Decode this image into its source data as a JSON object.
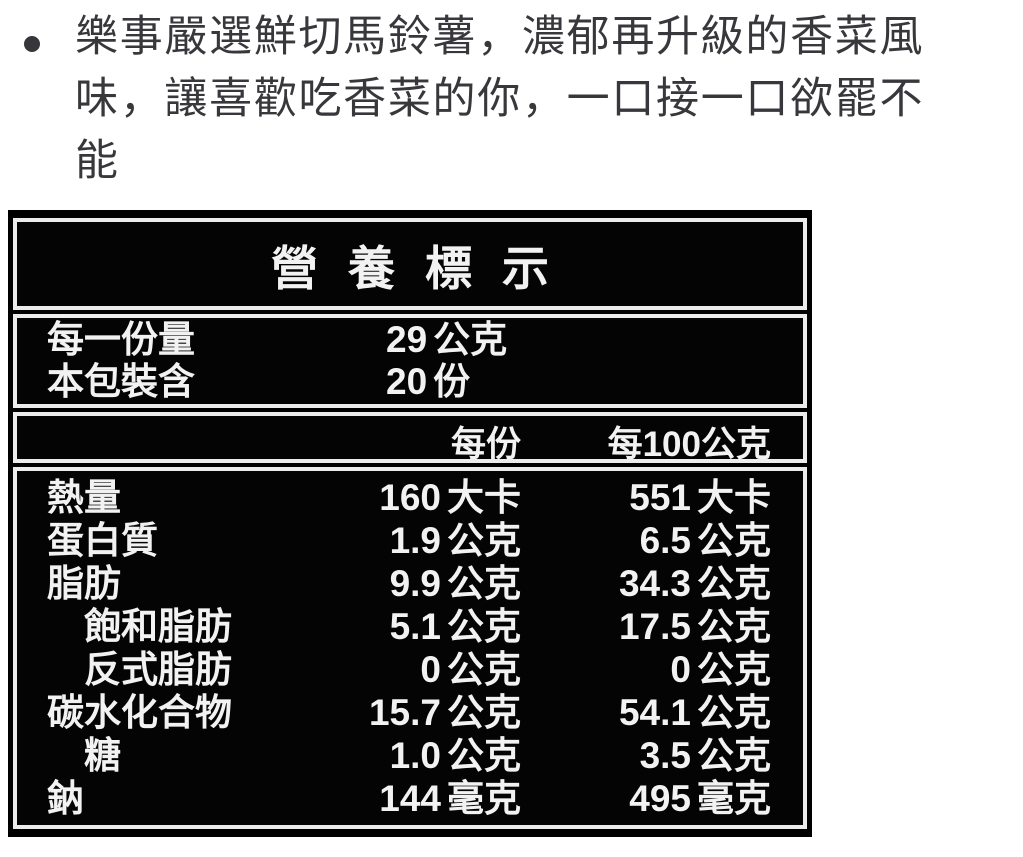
{
  "description": {
    "bullet_icon": "bullet-dot",
    "text": "樂事嚴選鮮切馬鈴薯，濃郁再升級的香菜風味，讓喜歡吃香菜的你，一口接一口欲罷不能"
  },
  "nutrition": {
    "title": "營養標示",
    "serving_rows": [
      {
        "label": "每一份量",
        "value": "29",
        "unit": "公克"
      },
      {
        "label": "本包裝含",
        "value": "20",
        "unit": "份"
      }
    ],
    "columns": [
      "每份",
      "每100公克"
    ],
    "rows": [
      {
        "name": "熱量",
        "indent": false,
        "per_serving": {
          "value": "160",
          "unit": "大卡"
        },
        "per_100g": {
          "value": "551",
          "unit": "大卡"
        }
      },
      {
        "name": "蛋白質",
        "indent": false,
        "per_serving": {
          "value": "1.9",
          "unit": "公克"
        },
        "per_100g": {
          "value": "6.5",
          "unit": "公克"
        }
      },
      {
        "name": "脂肪",
        "indent": false,
        "per_serving": {
          "value": "9.9",
          "unit": "公克"
        },
        "per_100g": {
          "value": "34.3",
          "unit": "公克"
        }
      },
      {
        "name": "飽和脂肪",
        "indent": true,
        "per_serving": {
          "value": "5.1",
          "unit": "公克"
        },
        "per_100g": {
          "value": "17.5",
          "unit": "公克"
        }
      },
      {
        "name": "反式脂肪",
        "indent": true,
        "per_serving": {
          "value": "0",
          "unit": "公克"
        },
        "per_100g": {
          "value": "0",
          "unit": "公克"
        }
      },
      {
        "name": "碳水化合物",
        "indent": false,
        "per_serving": {
          "value": "15.7",
          "unit": "公克"
        },
        "per_100g": {
          "value": "54.1",
          "unit": "公克"
        }
      },
      {
        "name": "糖",
        "indent": true,
        "per_serving": {
          "value": "1.0",
          "unit": "公克"
        },
        "per_100g": {
          "value": "3.5",
          "unit": "公克"
        }
      },
      {
        "name": "鈉",
        "indent": false,
        "per_serving": {
          "value": "144",
          "unit": "毫克"
        },
        "per_100g": {
          "value": "495",
          "unit": "毫克"
        }
      }
    ],
    "colors": {
      "label_background": "#000000",
      "label_text": "#f2f2f2",
      "border": "#ececec",
      "page_background": "#ffffff",
      "description_text": "#38383c"
    }
  }
}
